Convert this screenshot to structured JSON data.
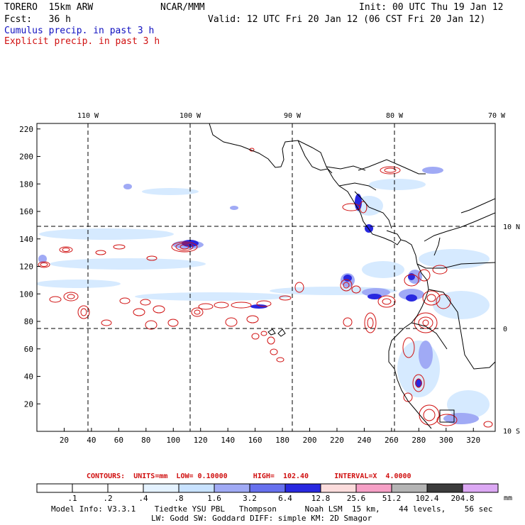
{
  "header": {
    "model": "TORERO  15km ARW",
    "center": "NCAR/MMM",
    "init": "Init: 00 UTC Thu 19 Jan 12",
    "fcst": "Fcst:   36 h",
    "valid": "Valid: 12 UTC Fri 20 Jan 12 (06 CST Fri 20 Jan 12)"
  },
  "legend": {
    "cumulus": "Cumulus precip. in past 3 h",
    "explicit": "Explicit precip. in past 3 h",
    "cumulus_color": "#1010c0",
    "explicit_color": "#d01010"
  },
  "map": {
    "lon_labels": [
      "110 W",
      "100 W",
      "90 W",
      "80 W",
      "70 W"
    ],
    "lat_labels": [
      "10 N",
      "0",
      "10 S"
    ],
    "x_ticks": [
      "20",
      "40",
      "60",
      "80",
      "100",
      "120",
      "140",
      "160",
      "180",
      "200",
      "220",
      "240",
      "260",
      "280",
      "300",
      "320"
    ],
    "y_ticks": [
      "220",
      "200",
      "180",
      "160",
      "140",
      "120",
      "100",
      "80",
      "60",
      "40",
      "20"
    ],
    "x_range": [
      0,
      336
    ],
    "y_range": [
      0,
      224
    ]
  },
  "contour_info": "CONTOURS:  UNITS=mm  LOW= 0.10000      HIGH=  102.40      INTERVAL=X  4.0000",
  "colorbar": {
    "labels": [
      ".1",
      ".2",
      ".4",
      ".8",
      "1.6",
      "3.2",
      "6.4",
      "12.8",
      "25.6",
      "51.2",
      "102.4",
      "204.8"
    ],
    "unit": "mm",
    "colors": [
      "#ffffff",
      "#ffffff",
      "#ffffff",
      "#e4f2ff",
      "#c8e2ff",
      "#a0aaf5",
      "#6670ee",
      "#2828e0",
      "#fcdcdc",
      "#f6a0c6",
      "#b4b4b4",
      "#3c3c3c",
      "#dca8f4"
    ]
  },
  "footer": {
    "line1": "Model Info: V3.3.1    Tiedtke YSU PBL   Thompson      Noah LSM  15 km,    44 levels,    56 sec",
    "line2": "LW: Godd SW: Goddard DIFF: simple KM: 2D Smagor"
  }
}
